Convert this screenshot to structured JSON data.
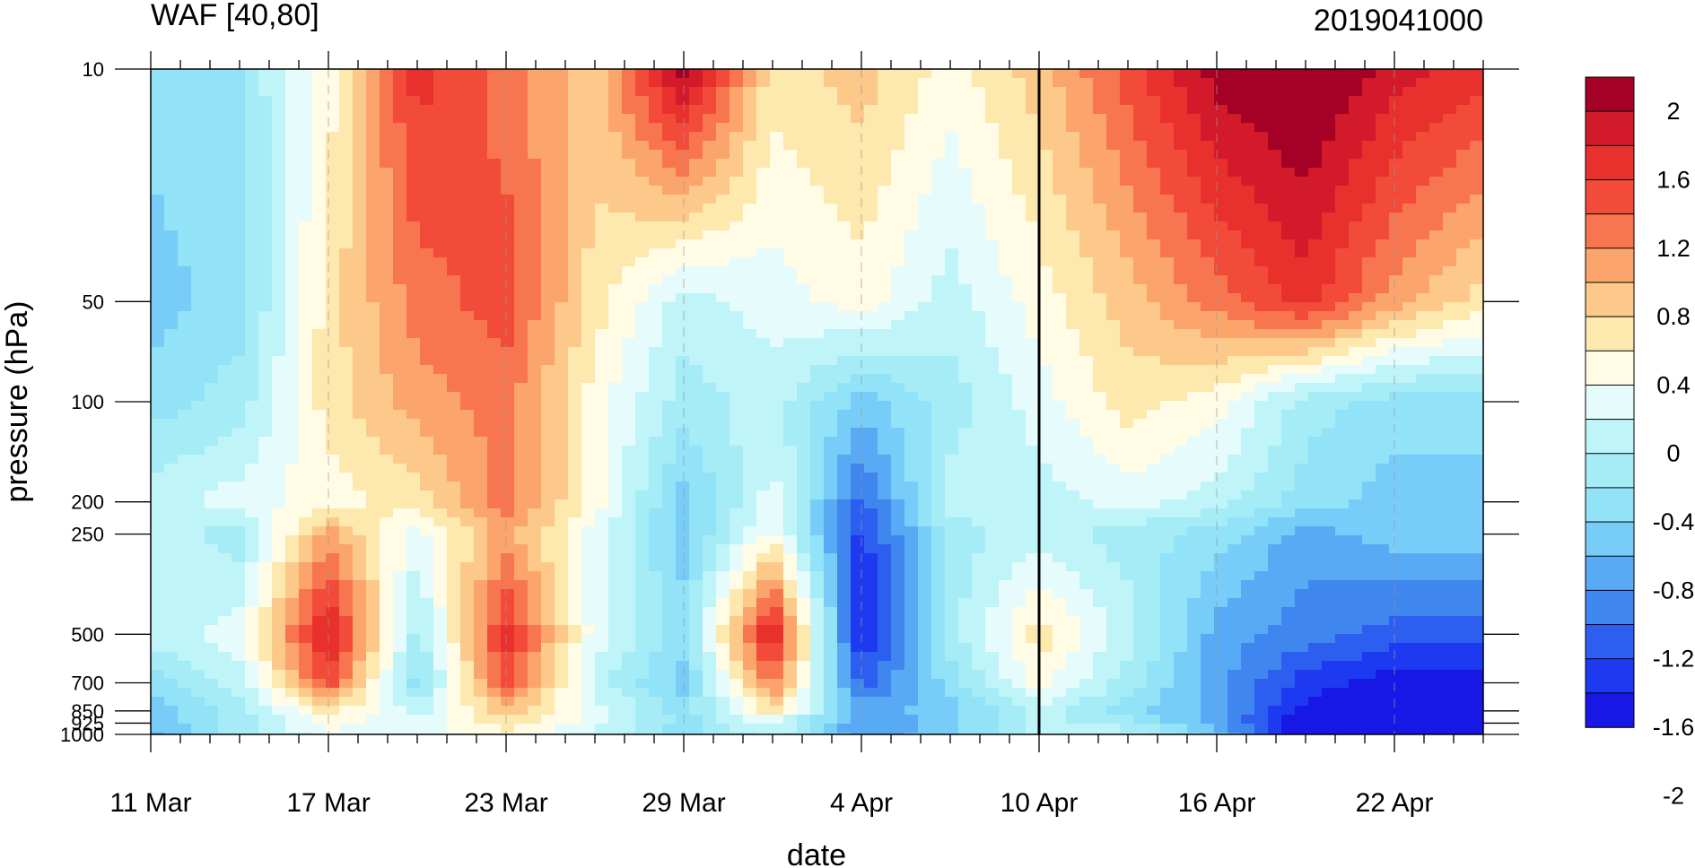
{
  "chart_data": {
    "type": "heatmap",
    "title_left": "WAF [40,80]",
    "title_right": "2019041000",
    "xlabel": "date",
    "ylabel": "pressure (hPa)",
    "x_ticks": [
      "11 Mar",
      "17 Mar",
      "23 Mar",
      "29 Mar",
      "4 Apr",
      "10 Apr",
      "16 Apr",
      "22 Apr"
    ],
    "x_range": [
      "11 Mar",
      "25 Apr"
    ],
    "y_ticks": [
      10,
      50,
      100,
      200,
      250,
      500,
      700,
      850,
      925,
      1000
    ],
    "y_range": [
      1000,
      10
    ],
    "y_scale": "log",
    "vertical_line": "10 Apr",
    "colorbar": {
      "labels": [
        "2",
        "1.6",
        "1.2",
        "0.8",
        "0.4",
        "0",
        "-0.4",
        "-0.8",
        "-1.2",
        "-1.6",
        "-2"
      ],
      "colors": [
        "#a50026",
        "#d21a2b",
        "#e8312d",
        "#f34b3a",
        "#f8764f",
        "#fba46b",
        "#fcc98a",
        "#fde8ad",
        "#fffbe4",
        "#e6fbfc",
        "#bff4f8",
        "#a6ecf7",
        "#92e2f8",
        "#77cdf8",
        "#58aaf5",
        "#3f86ee",
        "#2c5ef0",
        "#1e3af0",
        "#1717e6"
      ]
    },
    "data": {
      "days": [
        0,
        3,
        6,
        9,
        12,
        15,
        18,
        21,
        24,
        27,
        30,
        33,
        36,
        39,
        42,
        45
      ],
      "levels": [
        10,
        50,
        100,
        200,
        250,
        500,
        700,
        850,
        925,
        1000
      ],
      "values": [
        [
          -0.4,
          -0.3,
          0.4,
          1.6,
          1.2,
          0.8,
          2.0,
          0.6,
          0.8,
          0.4,
          0.8,
          1.4,
          2.0,
          2.2,
          1.8,
          1.6
        ],
        [
          -0.6,
          -0.4,
          0.6,
          1.2,
          1.4,
          0.6,
          0.0,
          0.2,
          0.4,
          0.0,
          0.4,
          0.8,
          1.2,
          1.6,
          1.0,
          0.6
        ],
        [
          -0.4,
          -0.2,
          0.6,
          1.0,
          1.2,
          0.4,
          -0.2,
          0.0,
          -0.6,
          -0.2,
          0.2,
          0.6,
          0.4,
          -0.2,
          -0.4,
          -0.4
        ],
        [
          0.0,
          0.2,
          0.4,
          0.6,
          1.2,
          0.4,
          -0.6,
          0.2,
          -1.2,
          0.0,
          0.0,
          0.2,
          0.0,
          -0.4,
          -0.6,
          -0.6
        ],
        [
          0.0,
          -0.2,
          1.0,
          0.2,
          1.0,
          0.2,
          -0.6,
          0.4,
          -1.4,
          -0.2,
          0.0,
          -0.2,
          -0.4,
          -0.8,
          -0.6,
          -0.6
        ],
        [
          0.0,
          0.2,
          1.8,
          -0.2,
          1.6,
          0.2,
          -0.4,
          1.8,
          -1.6,
          -0.2,
          0.6,
          0.0,
          -0.8,
          -1.0,
          -1.2,
          -1.2
        ],
        [
          -0.4,
          0.0,
          1.4,
          -0.4,
          1.4,
          0.0,
          -0.6,
          1.2,
          -1.2,
          -0.4,
          0.4,
          -0.2,
          -0.8,
          -1.4,
          -1.6,
          -1.6
        ],
        [
          -0.6,
          -0.2,
          0.6,
          0.0,
          0.8,
          0.2,
          -0.4,
          0.6,
          -0.8,
          -0.6,
          0.0,
          -0.4,
          -0.8,
          -1.6,
          -1.8,
          -1.8
        ],
        [
          -0.6,
          -0.2,
          0.4,
          0.2,
          0.6,
          0.2,
          -0.4,
          0.2,
          -1.0,
          -0.6,
          0.0,
          -0.2,
          -0.8,
          -1.8,
          -2.0,
          -1.8
        ],
        [
          -0.8,
          -0.2,
          0.2,
          0.2,
          0.4,
          0.0,
          -0.4,
          0.0,
          -0.8,
          -0.6,
          0.0,
          0.0,
          -0.6,
          -1.8,
          -2.0,
          -1.8
        ]
      ]
    }
  }
}
